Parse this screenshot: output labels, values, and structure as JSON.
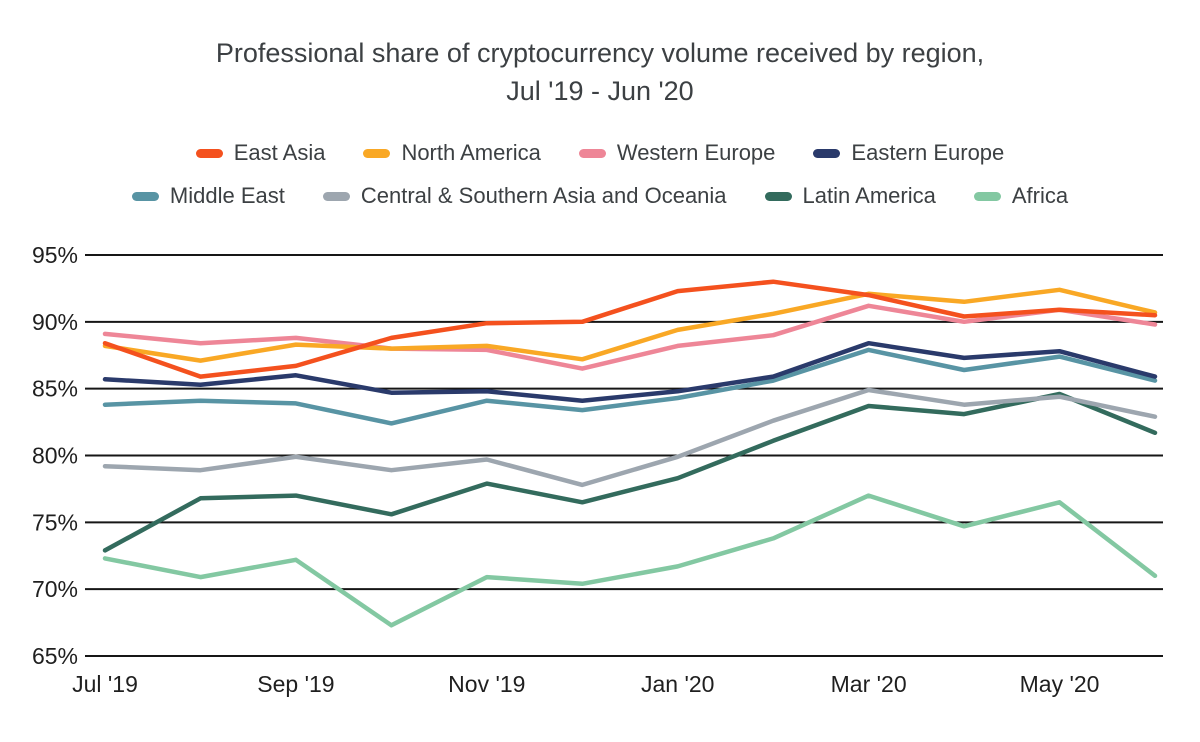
{
  "title": {
    "line1": "Professional share of cryptocurrency volume received by region,",
    "line2": "Jul '19 - Jun '20"
  },
  "chart_data": {
    "type": "line",
    "title": "Professional share of cryptocurrency volume received by region, Jul '19 - Jun '20",
    "x": [
      "Jul '19",
      "Aug '19",
      "Sep '19",
      "Oct '19",
      "Nov '19",
      "Dec '19",
      "Jan '20",
      "Feb '20",
      "Mar '20",
      "Apr '20",
      "May '20",
      "Jun '20"
    ],
    "x_tick_labels": [
      "Jul '19",
      "Sep '19",
      "Nov '19",
      "Jan '20",
      "Mar '20",
      "May '20"
    ],
    "y_ticks": [
      "95%",
      "90%",
      "85%",
      "80%",
      "75%",
      "70%",
      "65%"
    ],
    "ylim": [
      65,
      95
    ],
    "y_unit": "%",
    "grid": "horizontal",
    "legend_position": "top",
    "series": [
      {
        "name": "East Asia",
        "color": "#F4511E",
        "values": [
          88.4,
          85.9,
          86.7,
          88.8,
          89.9,
          90.0,
          92.3,
          93.0,
          92.0,
          90.4,
          90.9,
          90.5
        ]
      },
      {
        "name": "North America",
        "color": "#F9A825",
        "values": [
          88.2,
          87.1,
          88.3,
          88.0,
          88.2,
          87.2,
          89.4,
          90.6,
          92.1,
          91.5,
          92.4,
          90.7
        ]
      },
      {
        "name": "Western Europe",
        "color": "#EE8697",
        "values": [
          89.1,
          88.4,
          88.8,
          88.0,
          87.9,
          86.5,
          88.2,
          89.0,
          91.2,
          90.0,
          90.9,
          89.8
        ]
      },
      {
        "name": "Eastern Europe",
        "color": "#2A3A6B",
        "values": [
          85.7,
          85.3,
          86.0,
          84.7,
          84.8,
          84.1,
          84.8,
          85.9,
          88.4,
          87.3,
          87.8,
          85.9
        ]
      },
      {
        "name": "Middle East",
        "color": "#5894A4",
        "values": [
          83.8,
          84.1,
          83.9,
          82.4,
          84.1,
          83.4,
          84.3,
          85.6,
          87.9,
          86.4,
          87.4,
          85.6
        ]
      },
      {
        "name": "Central & Southern Asia and Oceania",
        "color": "#9DA6AF",
        "values": [
          79.2,
          78.9,
          79.9,
          78.9,
          79.7,
          77.8,
          79.9,
          82.6,
          84.9,
          83.8,
          84.4,
          82.9
        ]
      },
      {
        "name": "Latin America",
        "color": "#336B5D",
        "values": [
          72.9,
          76.8,
          77.0,
          75.6,
          77.9,
          76.5,
          78.3,
          81.1,
          83.7,
          83.1,
          84.6,
          81.7
        ]
      },
      {
        "name": "Africa",
        "color": "#83C8A2",
        "values": [
          72.3,
          70.9,
          72.2,
          67.3,
          70.9,
          70.4,
          71.7,
          73.8,
          77.0,
          74.7,
          76.5,
          71.0
        ]
      }
    ]
  },
  "style": {
    "grid_color": "#161616",
    "axis_label_color": "#1f1f1f",
    "title_color": "#3c4043"
  }
}
